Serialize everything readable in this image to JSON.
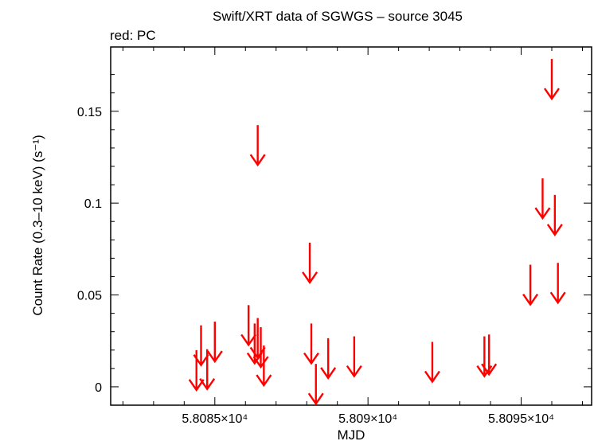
{
  "chart_data": {
    "type": "scatter",
    "title": "Swift/XRT data of SGWGS – source 3045",
    "subtitle": "red: PC",
    "xlabel": "MJD",
    "ylabel": "Count Rate (0.3–10 keV) (s⁻¹)",
    "xlim": [
      58081.6,
      58097.3
    ],
    "ylim": [
      -0.01,
      0.185
    ],
    "x_ticks": [
      {
        "value": 58085,
        "label": "5.8085×10⁴"
      },
      {
        "value": 58090,
        "label": "5.809×10⁴"
      },
      {
        "value": 58095,
        "label": "5.8095×10⁴"
      }
    ],
    "y_ticks": [
      {
        "value": 0,
        "label": "0"
      },
      {
        "value": 0.05,
        "label": "0.05"
      },
      {
        "value": 0.1,
        "label": "0.1"
      },
      {
        "value": 0.15,
        "label": "0.15"
      }
    ],
    "grid": false,
    "series": [
      {
        "name": "PC",
        "color": "#ff0000",
        "marker": "upper-limit-arrow",
        "points": [
          {
            "x": 58084.4,
            "y": 0.0035
          },
          {
            "x": 58084.55,
            "y": 0.017
          },
          {
            "x": 58084.75,
            "y": 0.004
          },
          {
            "x": 58085.0,
            "y": 0.019
          },
          {
            "x": 58086.1,
            "y": 0.028
          },
          {
            "x": 58086.3,
            "y": 0.018
          },
          {
            "x": 58086.4,
            "y": 0.021
          },
          {
            "x": 58086.4,
            "y": 0.126
          },
          {
            "x": 58086.5,
            "y": 0.016
          },
          {
            "x": 58086.6,
            "y": 0.006
          },
          {
            "x": 58088.1,
            "y": 0.062
          },
          {
            "x": 58088.15,
            "y": 0.018
          },
          {
            "x": 58088.3,
            "y": -0.004
          },
          {
            "x": 58088.7,
            "y": 0.01
          },
          {
            "x": 58089.55,
            "y": 0.011
          },
          {
            "x": 58092.1,
            "y": 0.008
          },
          {
            "x": 58093.8,
            "y": 0.011
          },
          {
            "x": 58093.95,
            "y": 0.012
          },
          {
            "x": 58095.3,
            "y": 0.05
          },
          {
            "x": 58095.7,
            "y": 0.097
          },
          {
            "x": 58096.0,
            "y": 0.162
          },
          {
            "x": 58096.1,
            "y": 0.088
          },
          {
            "x": 58096.2,
            "y": 0.051
          }
        ]
      }
    ]
  }
}
